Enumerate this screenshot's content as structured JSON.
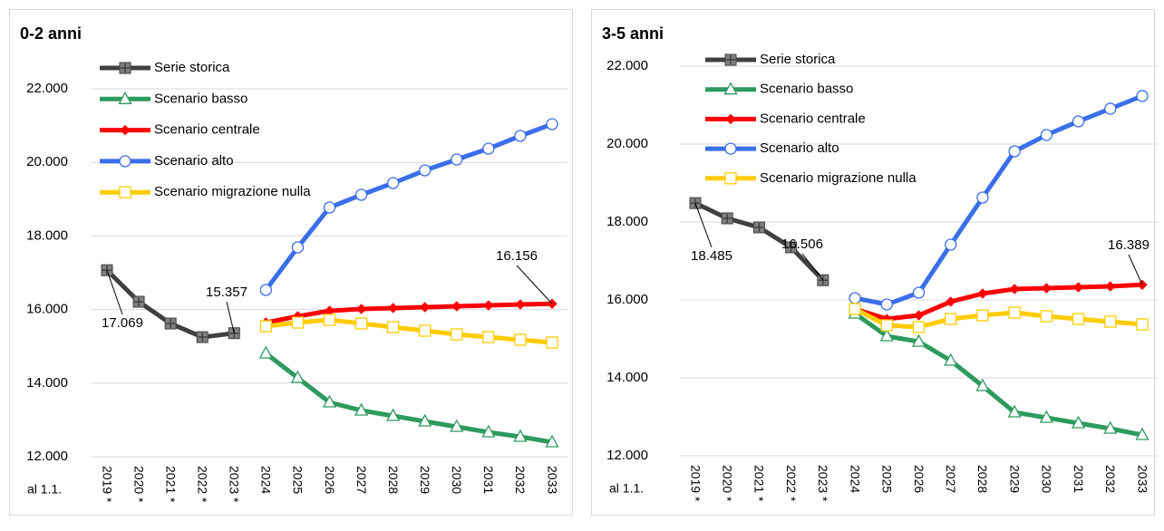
{
  "chart_data": [
    {
      "type": "line",
      "title": "0-2 anni",
      "x_axis_label": "al 1.1.",
      "categories": [
        "2019 *",
        "2020 *",
        "2021 *",
        "2022 *",
        "2023 *",
        "2024",
        "2025",
        "2026",
        "2027",
        "2028",
        "2029",
        "2030",
        "2031",
        "2032",
        "2033"
      ],
      "ylim": [
        12000,
        22000
      ],
      "yticks": [
        {
          "value": 12000,
          "label": "12.000"
        },
        {
          "value": 14000,
          "label": "14.000"
        },
        {
          "value": 16000,
          "label": "16.000"
        },
        {
          "value": 18000,
          "label": "18.000"
        },
        {
          "value": 20000,
          "label": "20.000"
        },
        {
          "value": 22000,
          "label": "22.000"
        }
      ],
      "grid": true,
      "legend": "upper left",
      "series": [
        {
          "name": "Serie storica",
          "color": "#404040",
          "values": [
            17069,
            16212,
            15620,
            15250,
            15357,
            null,
            null,
            null,
            null,
            null,
            null,
            null,
            null,
            null,
            null
          ],
          "value_labels": [
            "17.069",
            null,
            null,
            null,
            "15.357",
            null,
            null,
            null,
            null,
            null,
            null,
            null,
            null,
            null,
            null
          ]
        },
        {
          "name": "Scenario basso",
          "color": "#2e9a5f",
          "values": [
            null,
            null,
            null,
            null,
            null,
            14808,
            14143,
            13478,
            13256,
            13108,
            12960,
            12813,
            12665,
            12542,
            12394
          ]
        },
        {
          "name": "Scenario centrale",
          "color": "#ff0000",
          "values": [
            null,
            null,
            null,
            null,
            null,
            15645,
            15817,
            15965,
            16015,
            16040,
            16064,
            16089,
            16113,
            16138,
            16156
          ],
          "value_labels": [
            null,
            null,
            null,
            null,
            null,
            null,
            null,
            null,
            null,
            null,
            null,
            null,
            null,
            null,
            "16.156"
          ]
        },
        {
          "name": "Scenario alto",
          "color": "#3a6fe8",
          "values": [
            null,
            null,
            null,
            null,
            null,
            16532,
            17690,
            18773,
            19118,
            19438,
            19783,
            20079,
            20374,
            20719,
            21039
          ]
        },
        {
          "name": "Scenario migrazione nulla",
          "color": "#ffcc00",
          "values": [
            null,
            null,
            null,
            null,
            null,
            15547,
            15645,
            15719,
            15621,
            15522,
            15424,
            15325,
            15251,
            15177,
            15103
          ]
        }
      ]
    },
    {
      "type": "line",
      "title": "3-5 anni",
      "x_axis_label": "al 1.1.",
      "categories": [
        "2019 *",
        "2020 *",
        "2021 *",
        "2022 *",
        "2023 *",
        "2024",
        "2025",
        "2026",
        "2027",
        "2028",
        "2029",
        "2030",
        "2031",
        "2032",
        "2033"
      ],
      "ylim": [
        12000,
        22000
      ],
      "yticks": [
        {
          "value": 12000,
          "label": "12.000"
        },
        {
          "value": 14000,
          "label": "14.000"
        },
        {
          "value": 16000,
          "label": "16.000"
        },
        {
          "value": 18000,
          "label": "18.000"
        },
        {
          "value": 20000,
          "label": "20.000"
        },
        {
          "value": 22000,
          "label": "22.000"
        }
      ],
      "grid": true,
      "legend": "upper left",
      "series": [
        {
          "name": "Serie storica",
          "color": "#404040",
          "values": [
            18485,
            18094,
            17861,
            17350,
            16506,
            null,
            null,
            null,
            null,
            null,
            null,
            null,
            null,
            null,
            null
          ],
          "value_labels": [
            "18.485",
            null,
            null,
            null,
            "16.506",
            null,
            null,
            null,
            null,
            null,
            null,
            null,
            null,
            null,
            null
          ]
        },
        {
          "name": "Scenario basso",
          "color": "#2e9a5f",
          "values": [
            null,
            null,
            null,
            null,
            null,
            15651,
            15070,
            14930,
            14442,
            13791,
            13116,
            12977,
            12837,
            12698,
            12535
          ]
        },
        {
          "name": "Scenario centrale",
          "color": "#ff0000",
          "values": [
            null,
            null,
            null,
            null,
            null,
            15768,
            15512,
            15605,
            15954,
            16163,
            16279,
            16302,
            16326,
            16349,
            16389
          ],
          "value_labels": [
            null,
            null,
            null,
            null,
            null,
            null,
            null,
            null,
            null,
            null,
            null,
            null,
            null,
            null,
            "16.389"
          ]
        },
        {
          "name": "Scenario alto",
          "color": "#3a6fe8",
          "values": [
            null,
            null,
            null,
            null,
            null,
            16047,
            15884,
            16186,
            17419,
            18628,
            19814,
            20233,
            20582,
            20908,
            21234
          ]
        },
        {
          "name": "Scenario migrazione nulla",
          "color": "#ffcc00",
          "values": [
            null,
            null,
            null,
            null,
            null,
            15768,
            15349,
            15303,
            15512,
            15605,
            15675,
            15582,
            15512,
            15442,
            15372
          ]
        }
      ]
    }
  ]
}
